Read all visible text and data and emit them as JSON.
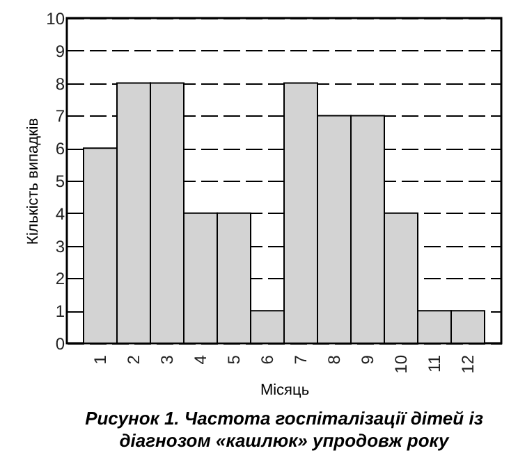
{
  "chart_data": {
    "type": "bar",
    "title": "Рисунок 1. Частота госпіталізації дітей із діагнозом «кашлюк» упродовж року",
    "xlabel": "Місяць",
    "ylabel": "Кількість випадків",
    "categories": [
      "1",
      "2",
      "3",
      "4",
      "5",
      "6",
      "7",
      "8",
      "9",
      "10",
      "11",
      "12"
    ],
    "values": [
      6,
      8,
      8,
      4,
      4,
      1,
      8,
      7,
      7,
      4,
      1,
      1
    ],
    "color": "#d3d3d3",
    "ylim": [
      0,
      10
    ],
    "yticks": [
      0,
      1,
      2,
      3,
      4,
      5,
      6,
      7,
      8,
      9,
      10
    ],
    "grid": "y"
  }
}
